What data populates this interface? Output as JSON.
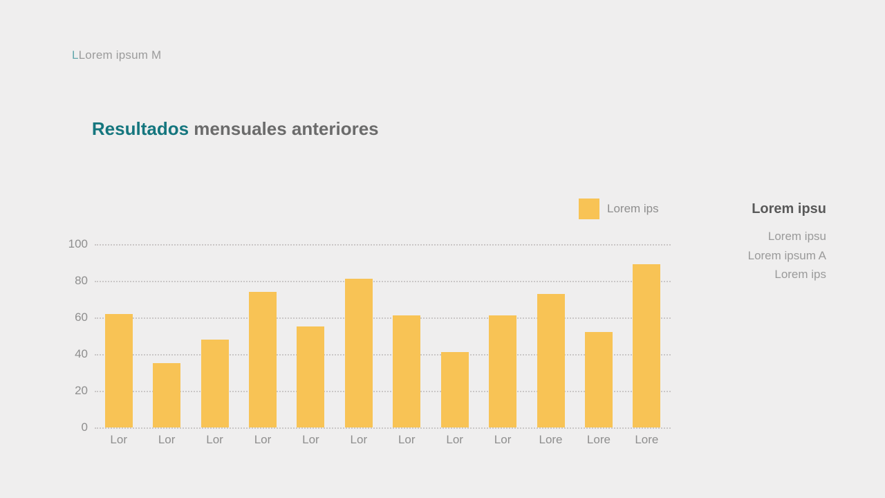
{
  "slide": {
    "kicker_prefix": "L",
    "kicker_text": "Lorem ipsum M",
    "title_accent": "Resultados",
    "title_rest": " mensuales anteriores"
  },
  "legend": {
    "label": "Lorem ips"
  },
  "side_panel": {
    "heading": "Lorem ipsu",
    "lines": [
      "Lorem ipsu",
      "Lorem ipsum A",
      "Lorem ips"
    ]
  },
  "colors": {
    "accent_teal": "#15767E",
    "bar_yellow": "#F8C355",
    "background": "#EFEEEE",
    "text_gray": "#6B6B6B",
    "axis_gray": "#8E8E8E"
  },
  "chart_data": {
    "type": "bar",
    "categories": [
      "Lor",
      "Lor",
      "Lor",
      "Lor",
      "Lor",
      "Lor",
      "Lor",
      "Lor",
      "Lor",
      "Lore",
      "Lore",
      "Lore"
    ],
    "values": [
      62,
      35,
      48,
      74,
      55,
      81,
      61,
      41,
      61,
      73,
      52,
      89
    ],
    "series_name": "Lorem ips",
    "title": "Resultados mensuales anteriores",
    "xlabel": "",
    "ylabel": "",
    "ylim": [
      0,
      100
    ],
    "yticks": [
      0,
      20,
      40,
      60,
      80,
      100
    ],
    "grid": "horizontal-dotted",
    "legend_position": "top-right",
    "bar_color": "#F8C355"
  }
}
